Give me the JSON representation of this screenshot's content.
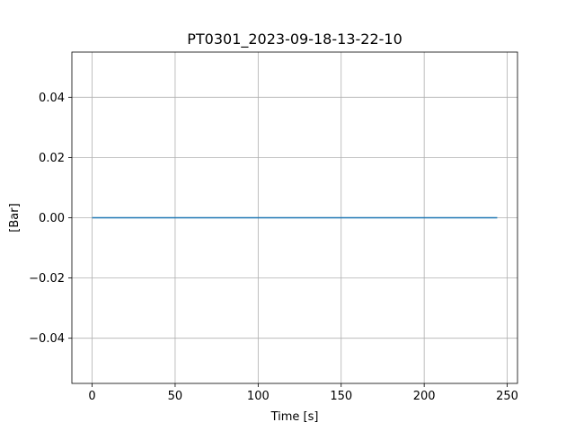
{
  "chart_data": {
    "type": "line",
    "title": "PT0301_2023-09-18-13-22-10",
    "xlabel": "Time [s]",
    "ylabel": "[Bar]",
    "xlim": [
      -12.2,
      256.2
    ],
    "ylim": [
      -0.055,
      0.055
    ],
    "xticks": [
      0,
      50,
      100,
      150,
      200,
      250
    ],
    "xtick_labels": [
      "0",
      "50",
      "100",
      "150",
      "200",
      "250"
    ],
    "yticks": [
      -0.04,
      -0.02,
      0.0,
      0.02,
      0.04
    ],
    "ytick_labels": [
      "−0.04",
      "−0.02",
      "0.00",
      "0.02",
      "0.04"
    ],
    "grid": true,
    "series": [
      {
        "color": "#1f77b4",
        "x": [
          0,
          244
        ],
        "y": [
          0.0,
          0.0
        ]
      }
    ]
  }
}
